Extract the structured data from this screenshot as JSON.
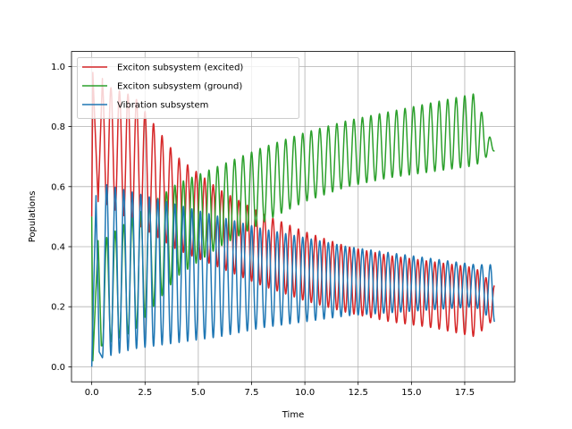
{
  "chart_data": {
    "type": "line",
    "title": "",
    "xlabel": "Time",
    "ylabel": "Populations",
    "xlim": [
      -0.95,
      19.85
    ],
    "ylim": [
      -0.05,
      1.05
    ],
    "xticks": [
      0.0,
      2.5,
      5.0,
      7.5,
      10.0,
      12.5,
      15.0,
      17.5
    ],
    "xtick_labels": [
      "0.0",
      "2.5",
      "5.0",
      "7.5",
      "10.0",
      "12.5",
      "15.0",
      "17.5"
    ],
    "yticks": [
      0.0,
      0.2,
      0.4,
      0.6,
      0.8,
      1.0
    ],
    "ytick_labels": [
      "0.0",
      "0.2",
      "0.4",
      "0.6",
      "0.8",
      "1.0"
    ],
    "grid": true,
    "legend_position": "top-left",
    "oscillation_period": 0.4,
    "t_range": [
      0.0,
      18.9
    ],
    "series": [
      {
        "name": "Exciton subsystem (excited)",
        "color": "#d62728",
        "keypoints": [
          [
            0.0,
            0.5
          ],
          [
            0.05,
            0.98
          ],
          [
            0.3,
            0.55
          ],
          [
            0.5,
            0.96
          ]
        ],
        "envelope": {
          "t": [
            0.5,
            2.0,
            4.0,
            6.0,
            8.0,
            10.0,
            12.0,
            14.0,
            16.0,
            18.0,
            18.9
          ],
          "max": [
            0.94,
            0.9,
            0.7,
            0.59,
            0.51,
            0.45,
            0.4,
            0.37,
            0.35,
            0.33,
            0.27
          ],
          "min": [
            0.55,
            0.48,
            0.39,
            0.33,
            0.27,
            0.22,
            0.18,
            0.15,
            0.13,
            0.1,
            0.16
          ]
        }
      },
      {
        "name": "Exciton subsystem (ground)",
        "color": "#2ca02c",
        "keypoints": [
          [
            0.0,
            0.5
          ],
          [
            0.05,
            0.02
          ],
          [
            0.3,
            0.42
          ],
          [
            0.45,
            0.07
          ]
        ],
        "envelope": {
          "t": [
            0.5,
            2.0,
            4.0,
            6.0,
            8.0,
            10.0,
            12.0,
            14.0,
            16.0,
            18.0,
            18.9
          ],
          "max": [
            0.42,
            0.5,
            0.61,
            0.67,
            0.73,
            0.78,
            0.82,
            0.85,
            0.88,
            0.91,
            0.72
          ],
          "min": [
            0.07,
            0.12,
            0.3,
            0.4,
            0.48,
            0.55,
            0.6,
            0.63,
            0.65,
            0.67,
            0.72
          ]
        }
      },
      {
        "name": "Vibration subsystem",
        "color": "#1f77b4",
        "keypoints": [
          [
            0.0,
            0.0
          ],
          [
            0.2,
            0.57
          ],
          [
            0.35,
            0.05
          ]
        ],
        "envelope": {
          "t": [
            0.5,
            2.0,
            4.0,
            6.0,
            8.0,
            10.0,
            12.0,
            14.0,
            16.0,
            18.0,
            18.9
          ],
          "max": [
            0.61,
            0.58,
            0.54,
            0.5,
            0.46,
            0.43,
            0.4,
            0.38,
            0.36,
            0.34,
            0.34
          ],
          "min": [
            0.03,
            0.06,
            0.08,
            0.1,
            0.13,
            0.15,
            0.17,
            0.18,
            0.19,
            0.2,
            0.15
          ]
        }
      }
    ]
  }
}
